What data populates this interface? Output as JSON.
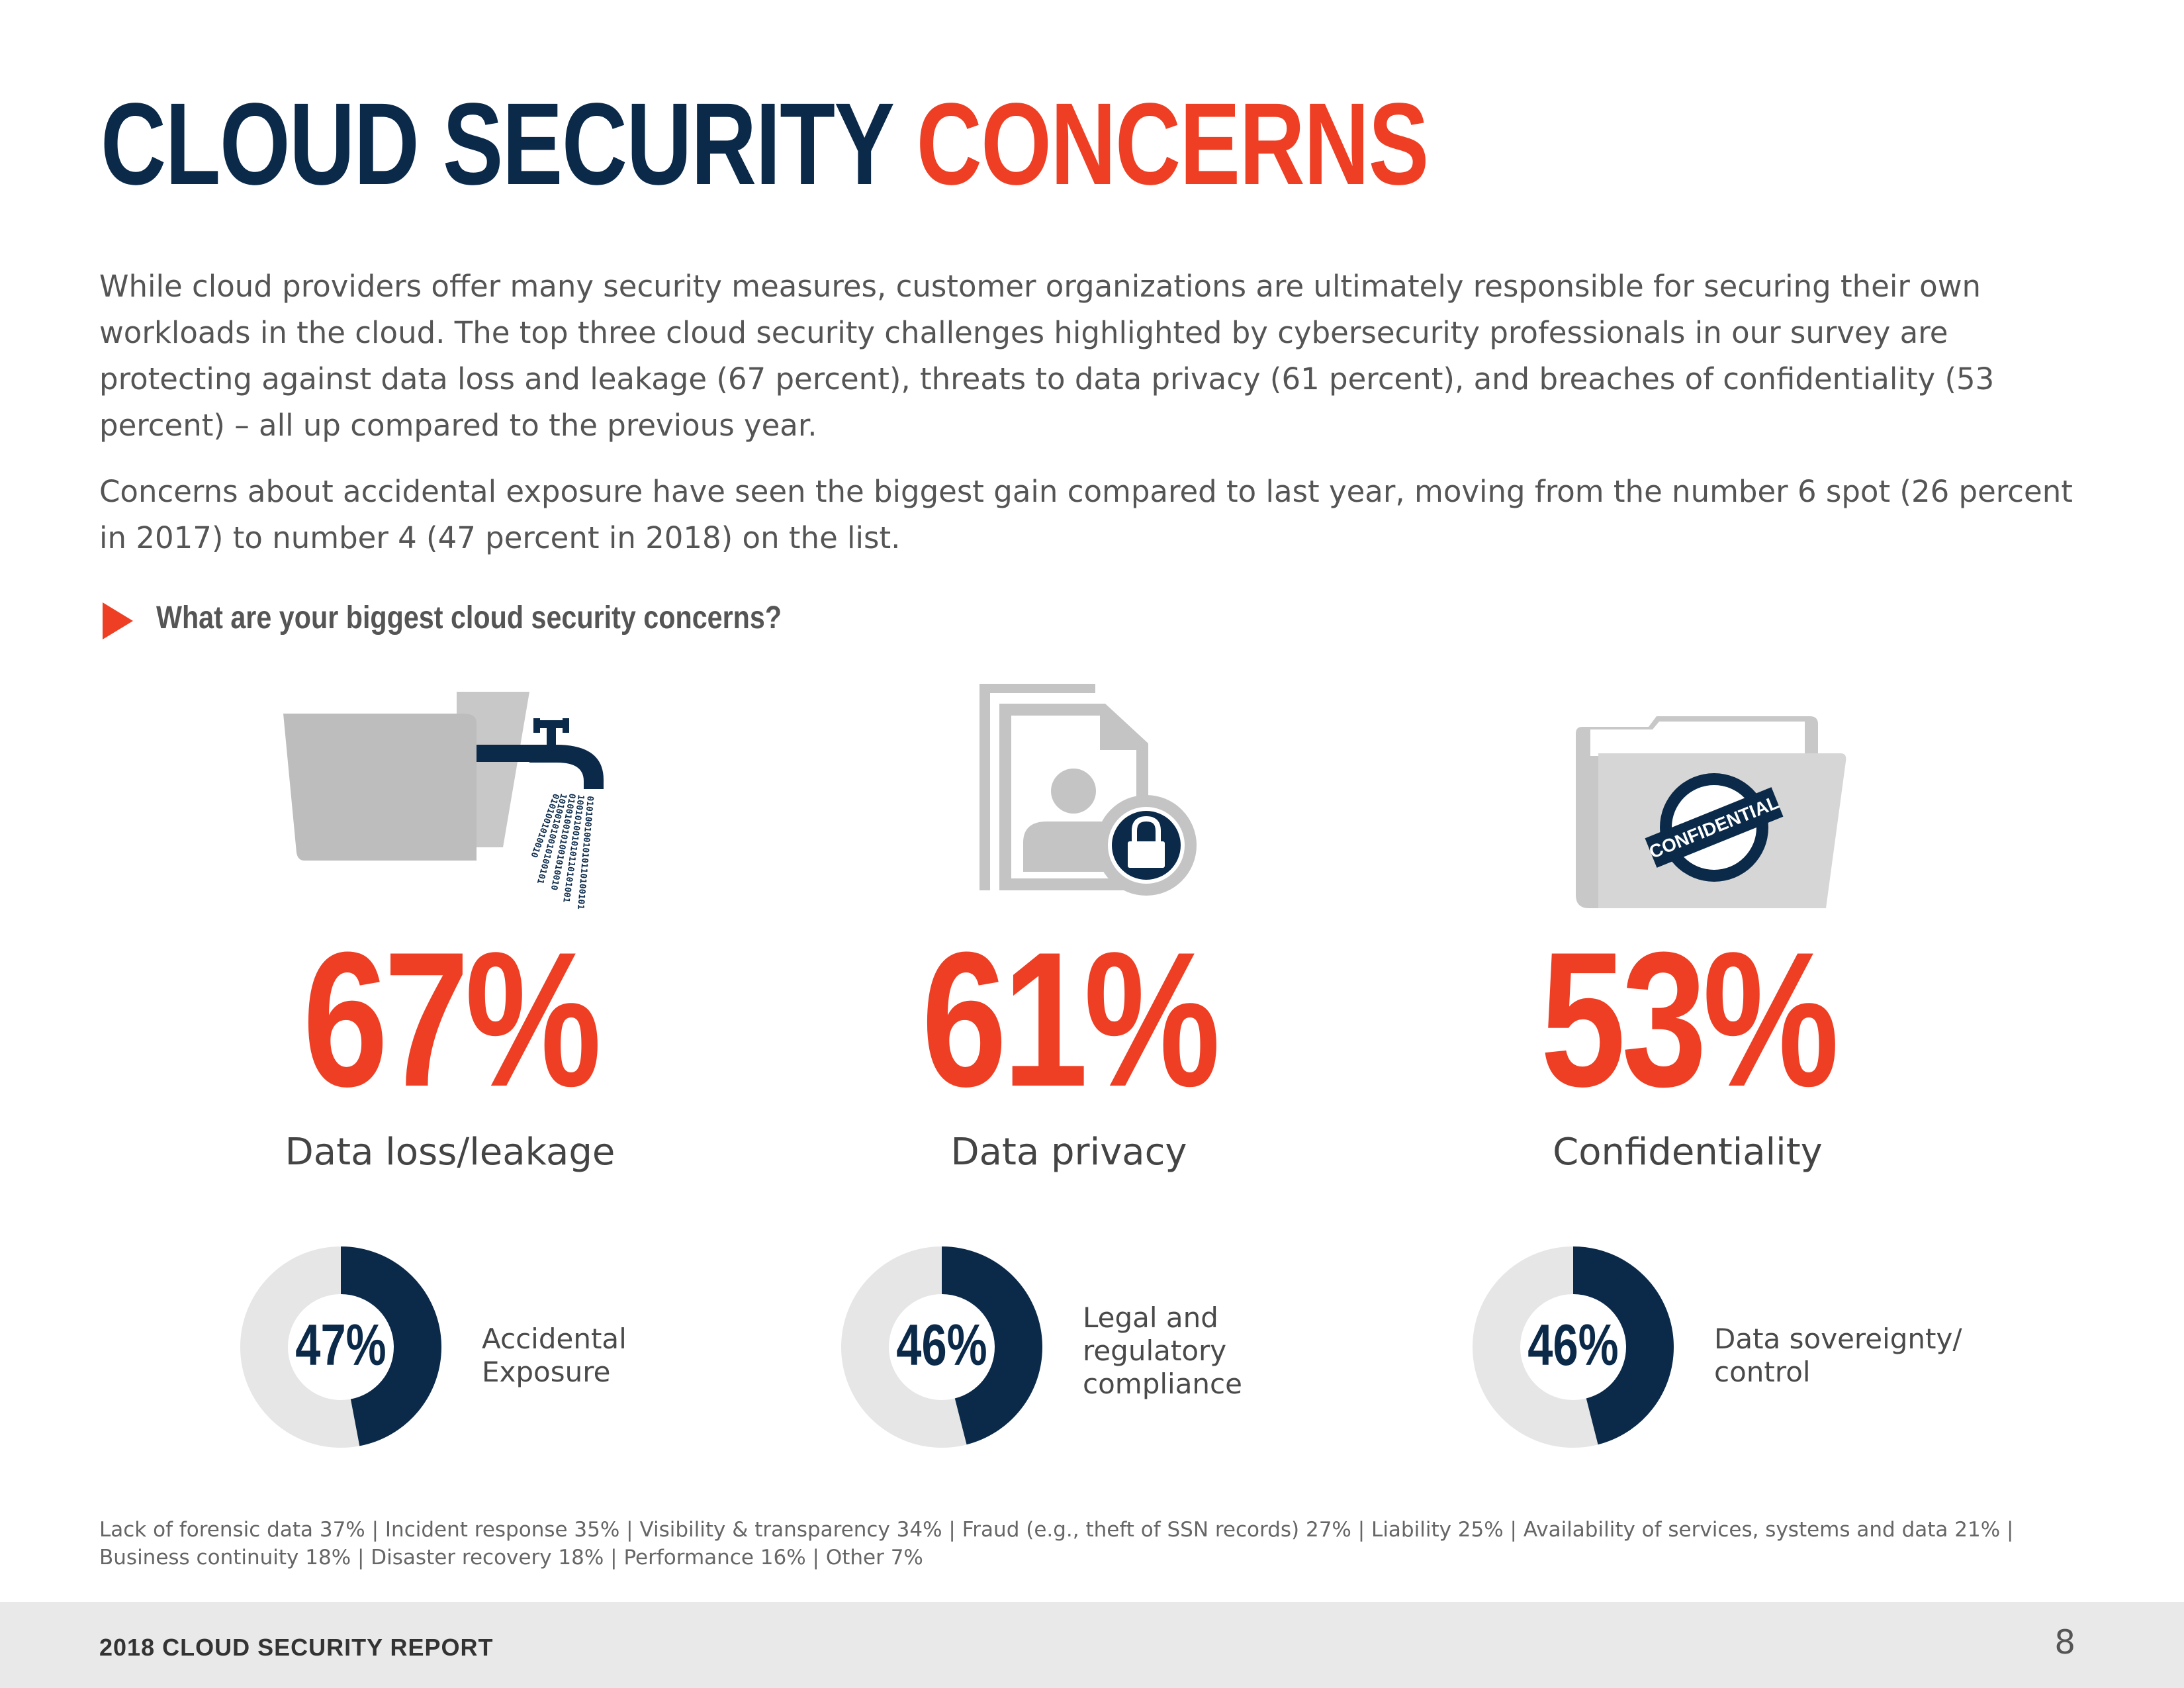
{
  "header": {
    "title_part1": "CLOUD SECURITY",
    "title_part2": "CONCERNS"
  },
  "intro": {
    "paragraph1": "While cloud providers offer many security measures, customer organizations are ultimately responsible for securing their own workloads in the cloud. The top three cloud security challenges highlighted by cybersecurity professionals in our survey are protecting against data loss and leakage (67 percent), threats to data privacy (61 percent), and breaches of confidentiality (53 percent) – all up compared to the previous year.",
    "paragraph2": "Concerns about accidental exposure have seen the biggest gain compared to last year, moving from the number 6 spot (26 percent in 2017) to number 4 (47 percent in 2018) on the list."
  },
  "question": "What are your biggest cloud security concerns?",
  "top_concerns": [
    {
      "value": "67%",
      "label": "Data loss/leakage",
      "icon": "leaking-folder-icon"
    },
    {
      "value": "61%",
      "label": "Data privacy",
      "icon": "locked-profile-document-icon"
    },
    {
      "value": "53%",
      "label": "Confidentiality",
      "icon": "confidential-folder-icon"
    }
  ],
  "confidential_stamp": "CONFIDENTIAL",
  "secondary_concerns": [
    {
      "value": "47%",
      "fraction": 0.47,
      "label_lines": [
        "Accidental",
        "Exposure"
      ]
    },
    {
      "value": "46%",
      "fraction": 0.46,
      "label_lines": [
        "Legal and",
        "regulatory",
        "compliance"
      ]
    },
    {
      "value": "46%",
      "fraction": 0.46,
      "label_lines": [
        "Data sovereignty/",
        "control"
      ]
    }
  ],
  "other_concerns": "Lack of forensic data 37%  |  Incident response 35%  |  Visibility & transparency 34% |  Fraud (e.g., theft of SSN records) 27% |  Liability 25%  |  Availability of services, systems and data 21% |  Business continuity 18%  |  Disaster recovery 18%  |  Performance 16%  |  Other 7%",
  "footer": {
    "report_title": "2018 CLOUD SECURITY REPORT",
    "page_number": "8"
  },
  "colors": {
    "navy": "#0b2a4a",
    "orange": "#ee3f24",
    "gray_icon": "#bfbfbf",
    "donut_track": "#e6e6e6"
  }
}
